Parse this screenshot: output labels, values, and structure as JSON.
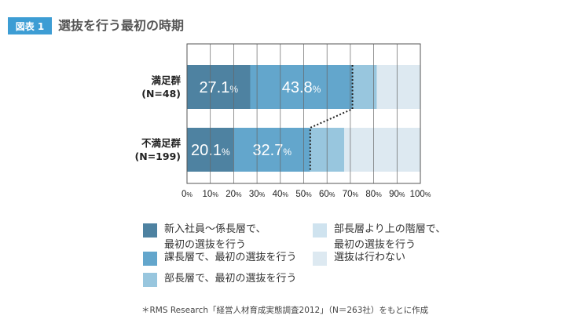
{
  "figure": {
    "badge": "図表 1",
    "title": "選抜を行う最初の時期"
  },
  "chart_data": {
    "type": "bar",
    "orientation": "horizontal",
    "stacked": true,
    "categories": [
      "満足群\n(N=48)",
      "不満足群\n(N=199)"
    ],
    "series": [
      {
        "name": "新入社員〜係長層で、\n最初の選抜を行う",
        "color": "#4e82a1",
        "values": [
          27.1,
          20.1
        ],
        "labels": [
          "27.1",
          "20.1"
        ]
      },
      {
        "name": "課長層で、最初の選抜を行う",
        "color": "#63a6cc",
        "values": [
          43.8,
          32.7
        ],
        "labels": [
          "43.8",
          "32.7"
        ]
      },
      {
        "name": "部長層で、最初の選抜を行う",
        "color": "#98c6de",
        "values": [
          10.4,
          14.6
        ],
        "labels": [
          "",
          ""
        ]
      },
      {
        "name": "部長層より上の階層で、\n最初の選抜を行う",
        "color": "#cfe3ef",
        "values": [
          0,
          0
        ],
        "labels": [
          "",
          ""
        ]
      },
      {
        "name": "選抜は行わない",
        "color": "#dde9f1",
        "values": [
          18.7,
          32.6
        ],
        "labels": [
          "",
          ""
        ]
      }
    ],
    "label_unit": "%",
    "xlim": [
      0,
      100
    ],
    "xticks": [
      "0%",
      "10%",
      "20%",
      "30%",
      "40%",
      "50%",
      "60%",
      "70%",
      "80%",
      "90%",
      "100%"
    ],
    "grid": true
  },
  "note": "＊RMS Research「経営人材育成実態調査2012」（N＝263社）をもとに作成"
}
